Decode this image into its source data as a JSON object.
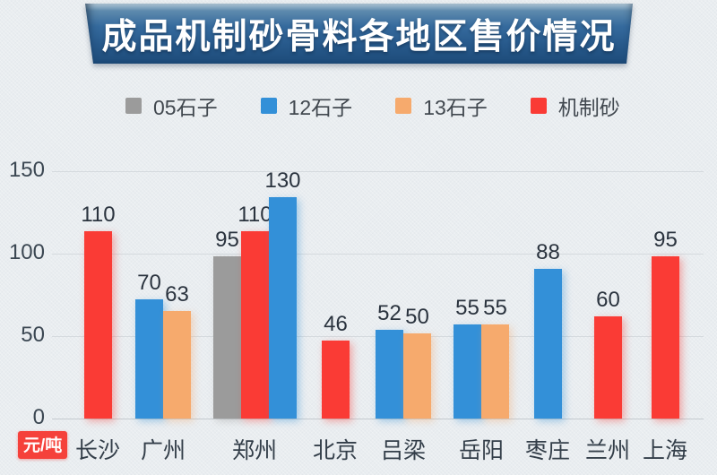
{
  "title": "成品机制砂骨料各地区售价情况",
  "y_axis": {
    "unit_badge": "元/吨",
    "ticks": [
      "0",
      "50",
      "100",
      "150"
    ]
  },
  "legend": [
    {
      "label": "05石子",
      "color": "#9b9b9b"
    },
    {
      "label": "12石子",
      "color": "#3390d8"
    },
    {
      "label": "13石子",
      "color": "#f6aa6d"
    },
    {
      "label": "机制砂",
      "color": "#fa3b35"
    }
  ],
  "chart_data": {
    "type": "bar",
    "title": "成品机制砂骨料各地区售价情况",
    "xlabel": "",
    "ylabel": "元/吨",
    "ylim": [
      0,
      150
    ],
    "yticks": [
      0,
      50,
      100,
      150
    ],
    "grid": true,
    "legend_position": "top",
    "categories": [
      "长沙",
      "广州",
      "郑州",
      "北京",
      "吕梁",
      "岳阳",
      "枣庄",
      "兰州",
      "上海"
    ],
    "series": [
      {
        "name": "05石子",
        "color": "#9b9b9b",
        "values": [
          null,
          null,
          95,
          null,
          null,
          null,
          null,
          null,
          null
        ]
      },
      {
        "name": "12石子",
        "color": "#3390d8",
        "values": [
          null,
          70,
          130,
          null,
          52,
          55,
          88,
          null,
          null
        ]
      },
      {
        "name": "13石子",
        "color": "#f6aa6d",
        "values": [
          null,
          63,
          null,
          null,
          50,
          55,
          null,
          null,
          null
        ]
      },
      {
        "name": "机制砂",
        "color": "#fa3b35",
        "values": [
          110,
          null,
          110,
          46,
          null,
          null,
          null,
          60,
          95
        ]
      }
    ],
    "groups": [
      {
        "city": "长沙",
        "bars": [
          {
            "series": "机制砂",
            "value": 110
          }
        ]
      },
      {
        "city": "广州",
        "bars": [
          {
            "series": "12石子",
            "value": 70
          },
          {
            "series": "13石子",
            "value": 63
          }
        ]
      },
      {
        "city": "郑州",
        "bars": [
          {
            "series": "05石子",
            "value": 95
          },
          {
            "series": "机制砂",
            "value": 110
          },
          {
            "series": "12石子",
            "value": 130
          }
        ]
      },
      {
        "city": "北京",
        "bars": [
          {
            "series": "机制砂",
            "value": 46
          }
        ]
      },
      {
        "city": "吕梁",
        "bars": [
          {
            "series": "12石子",
            "value": 52
          },
          {
            "series": "13石子",
            "value": 50
          }
        ]
      },
      {
        "city": "岳阳",
        "bars": [
          {
            "series": "12石子",
            "value": 55
          },
          {
            "series": "13石子",
            "value": 55
          }
        ]
      },
      {
        "city": "枣庄",
        "bars": [
          {
            "series": "12石子",
            "value": 88
          }
        ]
      },
      {
        "city": "兰州",
        "bars": [
          {
            "series": "机制砂",
            "value": 60
          }
        ]
      },
      {
        "city": "上海",
        "bars": [
          {
            "series": "机制砂",
            "value": 95
          }
        ]
      }
    ]
  }
}
